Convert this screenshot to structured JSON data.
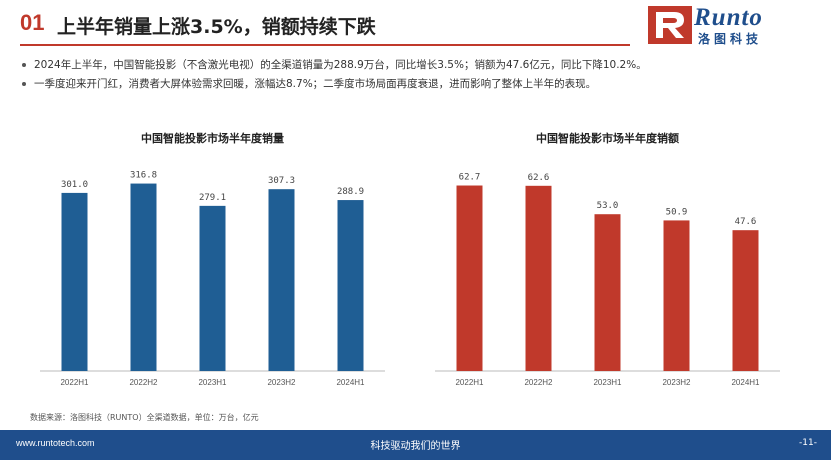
{
  "header": {
    "number": "01",
    "title": "上半年销量上涨3.5%，销额持续下跌"
  },
  "logo": {
    "word": "Runto",
    "cn": "洛图科技",
    "brand_color": "#1f4e8c"
  },
  "bullets": [
    "2024年上半年，中国智能投影（不含激光电视）的全渠道销量为288.9万台，同比增长3.5%；销额为47.6亿元，同比下降10.2%。",
    "一季度迎来开门红，消费者大屏体验需求回暖，涨幅达8.7%；二季度市场局面再度衰退，进而影响了整体上半年的表现。"
  ],
  "chart_data": [
    {
      "type": "bar",
      "title": "中国智能投影市场半年度销量",
      "categories": [
        "2022H1",
        "2022H2",
        "2023H1",
        "2023H2",
        "2024H1"
      ],
      "values": [
        301.0,
        316.8,
        279.1,
        307.3,
        288.9
      ],
      "value_labels": [
        "301.0",
        "316.8",
        "279.1",
        "307.3",
        "288.9"
      ],
      "ylim": [
        0,
        360
      ],
      "color": "#1f5e94",
      "grid": false
    },
    {
      "type": "bar",
      "title": "中国智能投影市场半年度销额",
      "categories": [
        "2022H1",
        "2022H2",
        "2023H1",
        "2023H2",
        "2024H1"
      ],
      "values": [
        62.7,
        62.6,
        53.0,
        50.9,
        47.6
      ],
      "value_labels": [
        "62.7",
        "62.6",
        "53.0",
        "50.9",
        "47.6"
      ],
      "ylim": [
        0,
        72
      ],
      "color": "#c0392b",
      "grid": false
    }
  ],
  "source": "数据来源：洛图科技（RUNTO）全渠道数据，单位：万台，亿元",
  "footer": {
    "url": "www.runtotech.com",
    "slogan": "科技驱动我们的世界",
    "page": "-11-"
  }
}
